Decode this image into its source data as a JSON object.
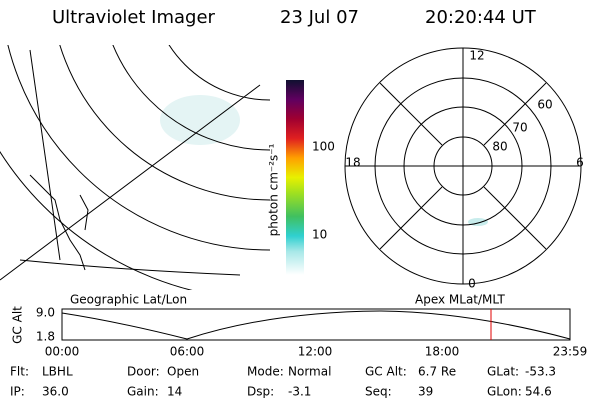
{
  "header": {
    "title": "Ultraviolet Imager",
    "date": "23 Jul 07",
    "time": "20:20:44 UT"
  },
  "colorbar": {
    "label": "photon cm⁻²s⁻¹",
    "ticks": [
      "100",
      "10"
    ]
  },
  "left_panel": {
    "caption": "Geographic Lat/Lon"
  },
  "polar_panel": {
    "caption": "Apex MLat/MLT",
    "mlt_labels": [
      "12",
      "18",
      "6",
      "0"
    ],
    "lat_labels": [
      "60",
      "70",
      "80"
    ]
  },
  "altitude_plot": {
    "ylabel": "GC Alt",
    "yticks": [
      "9.0",
      "1.8"
    ],
    "xticks": [
      "00:00",
      "06:00",
      "12:00",
      "18:00",
      "23:59"
    ]
  },
  "footer": {
    "rows": [
      [
        {
          "label": "Flt:",
          "value": "LBHL"
        },
        {
          "label": "Door:",
          "value": "Open"
        },
        {
          "label": "Mode:",
          "value": "Normal"
        },
        {
          "label": "GC Alt:",
          "value": "6.7 Re"
        },
        {
          "label": "GLat:",
          "value": "-53.3"
        }
      ],
      [
        {
          "label": "IP:",
          "value": "36.0"
        },
        {
          "label": "Gain:",
          "value": "14"
        },
        {
          "label": "Dsp:",
          "value": "-3.1"
        },
        {
          "label": "Seq:",
          "value": "39"
        },
        {
          "label": "GLon:",
          "value": "54.6"
        }
      ]
    ]
  }
}
